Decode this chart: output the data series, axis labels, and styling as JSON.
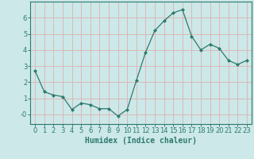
{
  "x": [
    0,
    1,
    2,
    3,
    4,
    5,
    6,
    7,
    8,
    9,
    10,
    11,
    12,
    13,
    14,
    15,
    16,
    17,
    18,
    19,
    20,
    21,
    22,
    23
  ],
  "y": [
    2.7,
    1.4,
    1.2,
    1.1,
    0.3,
    0.7,
    0.6,
    0.35,
    0.35,
    -0.1,
    0.3,
    2.1,
    3.85,
    5.2,
    5.8,
    6.3,
    6.5,
    4.85,
    4.0,
    4.35,
    4.1,
    3.35,
    3.1,
    3.35
  ],
  "line_color": "#2d7a6e",
  "marker": "D",
  "marker_size": 2.0,
  "xlabel": "Humidex (Indice chaleur)",
  "bg_color": "#cce8e8",
  "grid_color": "#ddb8b8",
  "axes_color": "#2d7a6e",
  "text_color": "#2d7a6e",
  "xlim": [
    -0.5,
    23.5
  ],
  "ylim": [
    -0.6,
    7.0
  ],
  "yticks": [
    0,
    1,
    2,
    3,
    4,
    5,
    6
  ],
  "ytick_labels": [
    "-0",
    "1",
    "2",
    "3",
    "4",
    "5",
    "6"
  ],
  "xticks": [
    0,
    1,
    2,
    3,
    4,
    5,
    6,
    7,
    8,
    9,
    10,
    11,
    12,
    13,
    14,
    15,
    16,
    17,
    18,
    19,
    20,
    21,
    22,
    23
  ],
  "xlabel_fontsize": 7,
  "tick_fontsize": 6
}
